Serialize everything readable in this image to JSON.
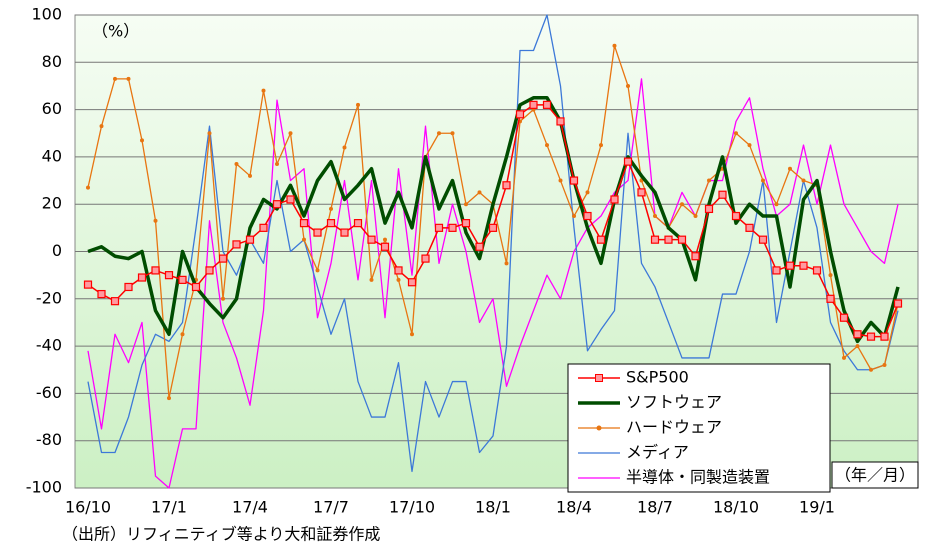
{
  "chart_data": {
    "type": "line",
    "categories": [
      "16/10",
      null,
      null,
      null,
      null,
      null,
      "17/1",
      null,
      null,
      null,
      null,
      null,
      "17/4",
      null,
      null,
      null,
      null,
      null,
      "17/7",
      null,
      null,
      null,
      null,
      null,
      "17/10",
      null,
      null,
      null,
      null,
      null,
      "18/1",
      null,
      null,
      null,
      null,
      null,
      "18/4",
      null,
      null,
      null,
      null,
      null,
      "18/7",
      null,
      null,
      null,
      null,
      null,
      "18/10",
      null,
      null,
      null,
      null,
      null,
      "19/1",
      null,
      null,
      null,
      null,
      null,
      null
    ],
    "series": [
      {
        "name": "S&P500",
        "color": "#ff0000",
        "marker": "square",
        "values": [
          -14,
          -18,
          -21,
          -15,
          -11,
          -8,
          -10,
          -12,
          -15,
          -8,
          -3,
          3,
          5,
          10,
          20,
          22,
          12,
          8,
          12,
          8,
          12,
          5,
          2,
          -8,
          -13,
          -3,
          10,
          10,
          12,
          2,
          10,
          28,
          58,
          62,
          62,
          55,
          30,
          15,
          5,
          22,
          38,
          25,
          5,
          5,
          5,
          -2,
          18,
          24,
          15,
          10,
          5,
          -8,
          -6,
          -6,
          -8,
          -20,
          -28,
          -35,
          -36,
          -36,
          -22
        ]
      },
      {
        "name": "ソフトウェア",
        "color": "#004d00",
        "values": [
          0,
          2,
          -2,
          -3,
          0,
          -25,
          -35,
          0,
          -15,
          -22,
          -28,
          -20,
          10,
          22,
          18,
          28,
          15,
          30,
          38,
          22,
          28,
          35,
          12,
          25,
          10,
          40,
          18,
          30,
          8,
          -3,
          20,
          40,
          62,
          65,
          65,
          55,
          30,
          10,
          -5,
          22,
          40,
          32,
          25,
          10,
          5,
          -12,
          20,
          40,
          12,
          20,
          15,
          15,
          -15,
          22,
          30,
          0,
          -25,
          -38,
          -30,
          -36,
          -15
        ]
      },
      {
        "name": "ハードウェア",
        "color": "#e87511",
        "marker": "circle",
        "values": [
          27,
          53,
          73,
          73,
          47,
          13,
          -62,
          -35,
          -12,
          50,
          -20,
          37,
          32,
          68,
          37,
          50,
          5,
          -8,
          18,
          44,
          62,
          -12,
          5,
          -12,
          -35,
          40,
          50,
          50,
          20,
          25,
          20,
          -5,
          55,
          60,
          45,
          30,
          15,
          25,
          45,
          87,
          70,
          30,
          15,
          10,
          20,
          15,
          30,
          35,
          50,
          45,
          30,
          20,
          35,
          30,
          28,
          -10,
          -45,
          -40,
          -50,
          -48,
          -22
        ]
      },
      {
        "name": "メディア",
        "color": "#3c78d8",
        "values": [
          -55,
          -85,
          -85,
          -70,
          -48,
          -35,
          -38,
          -30,
          10,
          53,
          0,
          -10,
          5,
          -5,
          30,
          0,
          5,
          -15,
          -35,
          -20,
          -55,
          -70,
          -70,
          -47,
          -93,
          -55,
          -70,
          -55,
          -55,
          -85,
          -78,
          -40,
          85,
          85,
          100,
          70,
          10,
          -42,
          -33,
          -25,
          50,
          -5,
          -15,
          -30,
          -45,
          -45,
          -45,
          -18,
          -18,
          0,
          30,
          -30,
          0,
          30,
          10,
          -30,
          -42,
          -50,
          -50,
          -48,
          -25
        ]
      },
      {
        "name": "半導体・同製造装置",
        "color": "#ff00ff",
        "values": [
          -42,
          -75,
          -35,
          -47,
          -30,
          -95,
          -100,
          -75,
          -75,
          13,
          -30,
          -45,
          -65,
          -25,
          64,
          30,
          35,
          -28,
          -5,
          30,
          -12,
          30,
          -28,
          35,
          -10,
          53,
          -5,
          20,
          0,
          -30,
          -20,
          -57,
          -40,
          -25,
          -10,
          -20,
          0,
          10,
          15,
          25,
          30,
          73,
          15,
          10,
          25,
          15,
          30,
          30,
          55,
          65,
          35,
          15,
          20,
          45,
          20,
          45,
          20,
          10,
          0,
          -5,
          20
        ]
      }
    ],
    "ylim": [
      -100,
      100
    ],
    "yticks": [
      -100,
      -80,
      -60,
      -40,
      -20,
      0,
      20,
      40,
      60,
      80,
      100
    ],
    "grid": true,
    "legend": "lower right",
    "y_unit_label": "（%）",
    "x_unit_label": "（年／月）",
    "source": "（出所）リフィニティブ等より大和証券作成"
  }
}
